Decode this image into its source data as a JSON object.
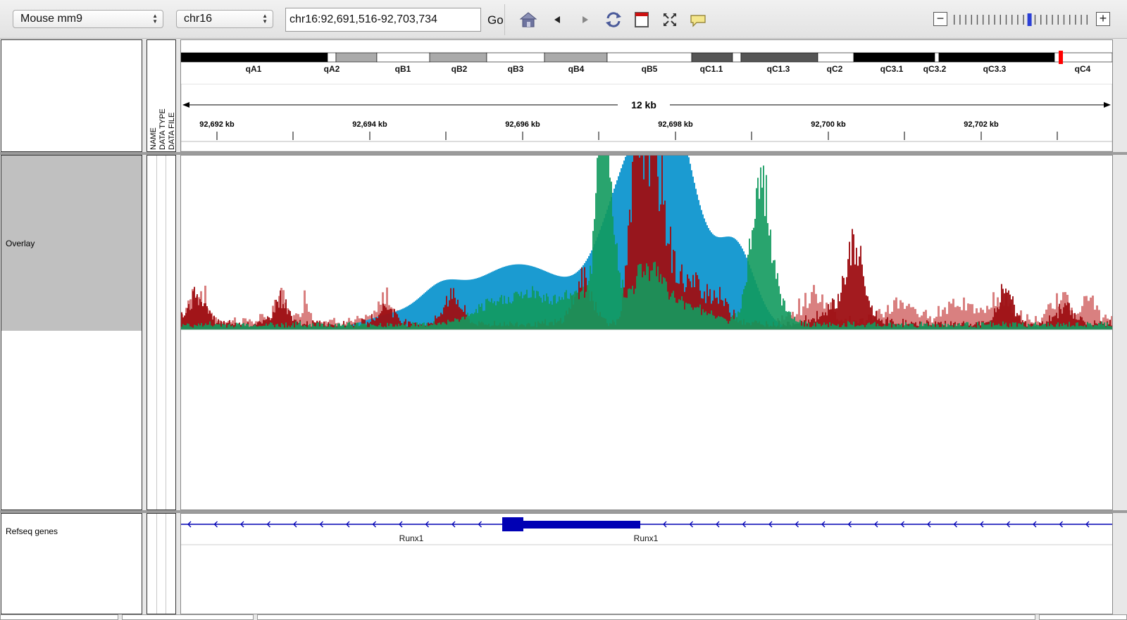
{
  "toolbar": {
    "genome": "Mouse mm9",
    "chromosome": "chr16",
    "locus": "chr16:92,691,516-92,703,734",
    "go_label": "Go",
    "icons": [
      "home-icon",
      "back-icon",
      "forward-icon",
      "refresh-icon",
      "roi-icon",
      "resize-icon",
      "popup-icon"
    ],
    "zoom_minus": "−",
    "zoom_plus": "+",
    "zoom_level_fraction": 0.58
  },
  "ideogram": {
    "bands": [
      {
        "label": "qA1",
        "stain": "#000000"
      },
      {
        "label": "qA2",
        "stain": "#ffffff"
      },
      {
        "label": "",
        "stain": "#aaaaaa"
      },
      {
        "label": "qB1",
        "stain": "#ffffff"
      },
      {
        "label": "qB2",
        "stain": "#aaaaaa"
      },
      {
        "label": "qB3",
        "stain": "#ffffff"
      },
      {
        "label": "qB4",
        "stain": "#aaaaaa"
      },
      {
        "label": "qB5",
        "stain": "#ffffff"
      },
      {
        "label": "qC1.1",
        "stain": "#555555"
      },
      {
        "label": "",
        "stain": "#ffffff"
      },
      {
        "label": "qC1.3",
        "stain": "#555555"
      },
      {
        "label": "qC2",
        "stain": "#ffffff"
      },
      {
        "label": "qC3.1",
        "stain": "#000000"
      },
      {
        "label": "qC3.2",
        "stain": "#ffffff"
      },
      {
        "label": "qC3.3",
        "stain": "#000000"
      },
      {
        "label": "qC4",
        "stain": "#ffffff"
      }
    ],
    "current_region_color": "#ff0000"
  },
  "ruler": {
    "span_label": "12 kb",
    "tick_labels": [
      "92,692 kb",
      "92,694 kb",
      "92,696 kb",
      "92,698 kb",
      "92,700 kb",
      "92,702 kb"
    ]
  },
  "attribute_headers": [
    "NAME",
    "DATA TYPE",
    "DATA FILE"
  ],
  "tracks": {
    "overlay": {
      "name": "Overlay",
      "series_colors": {
        "blue": "#1b9bd1",
        "red": "#9e0f13",
        "red_light": "#d26a6a",
        "green": "#129a5e"
      }
    },
    "refseq": {
      "name": "Refseq genes",
      "gene_labels": [
        "Runx1",
        "Runx1"
      ],
      "color": "#0000b4"
    }
  }
}
